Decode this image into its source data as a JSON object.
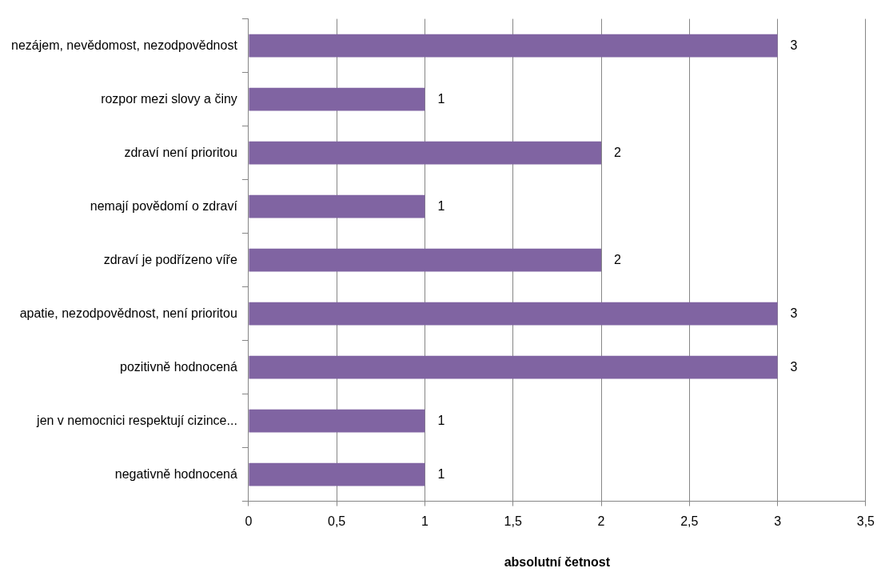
{
  "chart_data": {
    "type": "bar",
    "orientation": "horizontal",
    "categories": [
      "nezájem, nevědomost, nezodpovědnost",
      "rozpor mezi slovy a činy",
      "zdraví není prioritou",
      "nemají povědomí o zdraví",
      "zdraví je podřízeno víře",
      "apatie, nezodpovědnost, není prioritou",
      "pozitivně hodnocená",
      "jen v nemocnici respektují cizince...",
      "negativně hodnocená"
    ],
    "values": [
      3,
      1,
      2,
      1,
      2,
      3,
      3,
      1,
      1
    ],
    "color": "#8064a2",
    "xlim": [
      0,
      3.5
    ],
    "xticks": [
      0,
      {
        "value": 0.5,
        "label": "0,5"
      },
      1,
      {
        "value": 1.5,
        "label": "1,5"
      },
      2,
      {
        "value": 2.5,
        "label": "2,5"
      },
      3,
      {
        "value": 3.5,
        "label": "3,5"
      }
    ],
    "xlabel": "absolutní četnost",
    "grid": "x",
    "data_labels": true,
    "legend": false
  }
}
